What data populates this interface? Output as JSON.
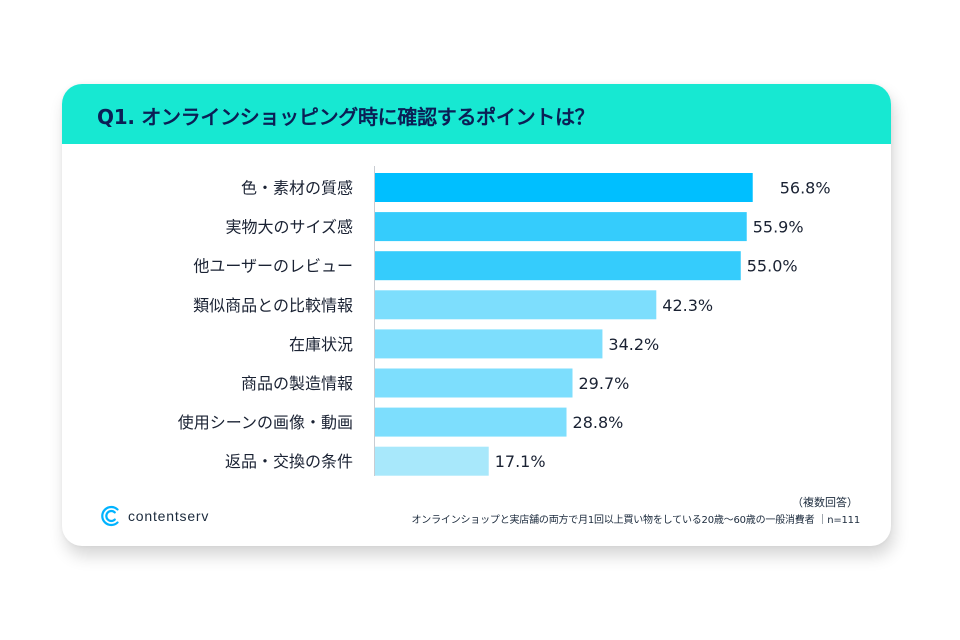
{
  "title": "Q1. オンラインショッピング時に確認するポイントは？",
  "chart_data": {
    "type": "bar",
    "orientation": "horizontal",
    "title": "Q1. オンラインショッピング時に確認するポイントは？",
    "categories": [
      "色・素材の質感",
      "実物大のサイズ感",
      "他ユーザーのレビュー",
      "類似商品との比較情報",
      "在庫状況",
      "商品の製造情報",
      "使用シーンの画像・動画",
      "返品・交換の条件"
    ],
    "values": [
      56.8,
      55.9,
      55.0,
      42.3,
      34.2,
      29.7,
      28.8,
      17.1
    ],
    "value_labels": [
      "56.8%",
      "55.9%",
      "55.0%",
      "42.3%",
      "34.2%",
      "29.7%",
      "28.8%",
      "17.1%"
    ],
    "unit": "%",
    "xlim": [
      0,
      100
    ],
    "grid": false,
    "legend": "none",
    "colors": [
      "#00bfff",
      "#35ccfc",
      "#35ccfc",
      "#7ddefd",
      "#7ddefd",
      "#7ddefd",
      "#7ddefd",
      "#a8e8fb"
    ]
  },
  "footer": {
    "brand": "contentserv",
    "multi_answer_note": "（複数回答）",
    "sample_note": "オンラインショップと実店舗の両方で月1回以上買い物をしている20歳～60歳の一般消費者 ｜n=111"
  },
  "style": {
    "header_color": "#17e8d2",
    "title_color": "#0b1f55",
    "logo_color": "#00b3ff"
  }
}
